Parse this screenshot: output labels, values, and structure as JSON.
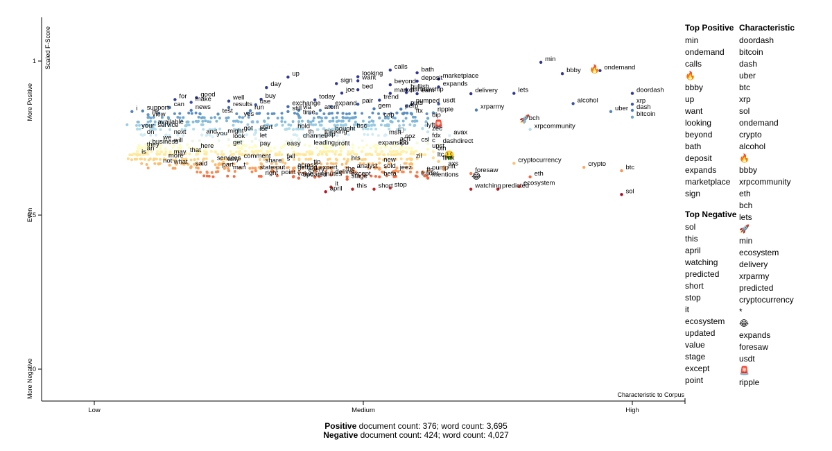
{
  "chart_data": {
    "type": "scatter",
    "xlabel": "Characteristic to Corpus",
    "ylabel": "Scaled F-Score",
    "x_ticks": [
      "Low",
      "Medium",
      "High"
    ],
    "y_ticks": [
      "More Negative",
      "Even",
      "More Positive"
    ],
    "y_tick_values": [
      "0",
      "0.5",
      "1"
    ],
    "xlim": [
      0,
      1
    ],
    "ylim": [
      0,
      1
    ],
    "colors": {
      "positive": "#313695",
      "neutral": "#ffffbf",
      "negative": "#a50026"
    },
    "points": [
      {
        "x": 0.83,
        "y": 0.996,
        "label": "min"
      },
      {
        "x": 0.94,
        "y": 0.969,
        "label": "ondemand"
      },
      {
        "x": 0.87,
        "y": 0.959,
        "label": "bbby"
      },
      {
        "x": 0.93,
        "y": 0.976,
        "label": "🔥"
      },
      {
        "x": 0.55,
        "y": 0.971,
        "label": "calls"
      },
      {
        "x": 0.6,
        "y": 0.962,
        "label": "bath"
      },
      {
        "x": 0.49,
        "y": 0.949,
        "label": "looking"
      },
      {
        "x": 0.36,
        "y": 0.948,
        "label": "up"
      },
      {
        "x": 0.64,
        "y": 0.942,
        "label": "marketplace"
      },
      {
        "x": 0.49,
        "y": 0.936,
        "label": "want"
      },
      {
        "x": 0.6,
        "y": 0.935,
        "label": "deposit"
      },
      {
        "x": 0.45,
        "y": 0.927,
        "label": "sign"
      },
      {
        "x": 0.55,
        "y": 0.923,
        "label": "beyond"
      },
      {
        "x": 0.64,
        "y": 0.916,
        "label": "expands"
      },
      {
        "x": 0.32,
        "y": 0.914,
        "label": "day"
      },
      {
        "x": 0.49,
        "y": 0.907,
        "label": "bed"
      },
      {
        "x": 0.58,
        "y": 0.907,
        "label": "bullish"
      },
      {
        "x": 0.58,
        "y": 0.898,
        "label": "partnership"
      },
      {
        "x": 0.46,
        "y": 0.896,
        "label": "joe"
      },
      {
        "x": 0.55,
        "y": 0.895,
        "label": "market"
      },
      {
        "x": 0.6,
        "y": 0.894,
        "label": "earn"
      },
      {
        "x": 0.7,
        "y": 0.894,
        "label": "delivery"
      },
      {
        "x": 0.78,
        "y": 0.895,
        "label": "lets"
      },
      {
        "x": 1.0,
        "y": 0.895,
        "label": "doordash"
      },
      {
        "x": 0.19,
        "y": 0.881,
        "label": "good"
      },
      {
        "x": 0.15,
        "y": 0.875,
        "label": "for"
      },
      {
        "x": 0.31,
        "y": 0.876,
        "label": "buy"
      },
      {
        "x": 0.41,
        "y": 0.874,
        "label": "today"
      },
      {
        "x": 0.53,
        "y": 0.873,
        "label": "trend"
      },
      {
        "x": 0.25,
        "y": 0.87,
        "label": "well"
      },
      {
        "x": 0.18,
        "y": 0.866,
        "label": "make"
      },
      {
        "x": 0.49,
        "y": 0.86,
        "label": "pair"
      },
      {
        "x": 0.3,
        "y": 0.858,
        "label": "use"
      },
      {
        "x": 0.59,
        "y": 0.86,
        "label": "pumped"
      },
      {
        "x": 0.64,
        "y": 0.861,
        "label": "usdt"
      },
      {
        "x": 0.89,
        "y": 0.862,
        "label": "alcohol"
      },
      {
        "x": 1.0,
        "y": 0.86,
        "label": "xrp"
      },
      {
        "x": 0.58,
        "y": 0.854,
        "label": "puts"
      },
      {
        "x": 0.36,
        "y": 0.852,
        "label": "exchange"
      },
      {
        "x": 0.44,
        "y": 0.852,
        "label": "expand"
      },
      {
        "x": 0.25,
        "y": 0.849,
        "label": "results"
      },
      {
        "x": 0.14,
        "y": 0.849,
        "label": "can"
      },
      {
        "x": 0.52,
        "y": 0.845,
        "label": "gem"
      },
      {
        "x": 0.57,
        "y": 0.844,
        "label": "perp"
      },
      {
        "x": 0.71,
        "y": 0.841,
        "label": "xrparmy"
      },
      {
        "x": 1.0,
        "y": 0.84,
        "label": "dash"
      },
      {
        "x": 0.38,
        "y": 0.84,
        "label": "via"
      },
      {
        "x": 0.29,
        "y": 0.839,
        "label": "run"
      },
      {
        "x": 0.42,
        "y": 0.84,
        "label": "atom"
      },
      {
        "x": 0.18,
        "y": 0.84,
        "label": "news"
      },
      {
        "x": 0.36,
        "y": 0.836,
        "label": "still"
      },
      {
        "x": 0.09,
        "y": 0.838,
        "label": "support"
      },
      {
        "x": 0.07,
        "y": 0.836,
        "label": "i"
      },
      {
        "x": 0.96,
        "y": 0.836,
        "label": "uber"
      },
      {
        "x": 0.63,
        "y": 0.832,
        "label": "ripple"
      },
      {
        "x": 0.59,
        "y": 0.828,
        "label": "ftx"
      },
      {
        "x": 0.23,
        "y": 0.828,
        "label": "test"
      },
      {
        "x": 0.38,
        "y": 0.823,
        "label": "time"
      },
      {
        "x": 0.1,
        "y": 0.826,
        "label": "re"
      },
      {
        "x": 1.0,
        "y": 0.818,
        "label": "bitcoin"
      },
      {
        "x": 0.27,
        "y": 0.818,
        "label": "yes"
      },
      {
        "x": 0.1,
        "y": 0.817,
        "label": "view"
      },
      {
        "x": 0.53,
        "y": 0.815,
        "label": "cap"
      },
      {
        "x": 0.62,
        "y": 0.814,
        "label": "dip"
      },
      {
        "x": 0.8,
        "y": 0.814,
        "label": "🚀"
      },
      {
        "x": 0.8,
        "y": 0.804,
        "label": "bch"
      },
      {
        "x": 0.11,
        "y": 0.792,
        "label": "available"
      },
      {
        "x": 0.11,
        "y": 0.781,
        "label": "service"
      },
      {
        "x": 0.64,
        "y": 0.797,
        "label": "🚨"
      },
      {
        "x": 0.61,
        "y": 0.781,
        "label": "lyft"
      },
      {
        "x": 0.57,
        "y": 0.779,
        "label": "□"
      },
      {
        "x": 0.08,
        "y": 0.779,
        "label": "your"
      },
      {
        "x": 0.37,
        "y": 0.778,
        "label": "hold"
      },
      {
        "x": 0.3,
        "y": 0.775,
        "label": "start"
      },
      {
        "x": 0.48,
        "y": 0.779,
        "label": "bsc"
      },
      {
        "x": 0.81,
        "y": 0.778,
        "label": "xrpcommunity"
      },
      {
        "x": 0.27,
        "y": 0.771,
        "label": "got"
      },
      {
        "x": 0.3,
        "y": 0.768,
        "label": "lot"
      },
      {
        "x": 0.62,
        "y": 0.77,
        "label": "zec"
      },
      {
        "x": 0.44,
        "y": 0.77,
        "label": "bought"
      },
      {
        "x": 0.24,
        "y": 0.762,
        "label": "might"
      },
      {
        "x": 0.39,
        "y": 0.76,
        "label": "th"
      },
      {
        "x": 0.42,
        "y": 0.76,
        "label": "thinking"
      },
      {
        "x": 0.54,
        "y": 0.758,
        "label": "msft"
      },
      {
        "x": 0.66,
        "y": 0.758,
        "label": "avax"
      },
      {
        "x": 0.09,
        "y": 0.759,
        "label": "on"
      },
      {
        "x": 0.14,
        "y": 0.759,
        "label": "next"
      },
      {
        "x": 0.2,
        "y": 0.76,
        "label": "and"
      },
      {
        "x": 0.22,
        "y": 0.754,
        "label": "you"
      },
      {
        "x": 0.42,
        "y": 0.751,
        "label": "gap"
      },
      {
        "x": 0.38,
        "y": 0.747,
        "label": "channel"
      },
      {
        "x": 0.3,
        "y": 0.748,
        "label": "let"
      },
      {
        "x": 0.25,
        "y": 0.745,
        "label": "look"
      },
      {
        "x": 0.62,
        "y": 0.748,
        "label": "fdx"
      },
      {
        "x": 0.57,
        "y": 0.745,
        "label": "coz"
      },
      {
        "x": 0.12,
        "y": 0.741,
        "label": "we"
      },
      {
        "x": 0.56,
        "y": 0.737,
        "label": "ach"
      },
      {
        "x": 0.6,
        "y": 0.734,
        "label": "csl"
      },
      {
        "x": 0.62,
        "y": 0.732,
        "label": "c"
      },
      {
        "x": 0.64,
        "y": 0.73,
        "label": "dashdirect"
      },
      {
        "x": 0.14,
        "y": 0.732,
        "label": "will"
      },
      {
        "x": 0.1,
        "y": 0.727,
        "label": "business"
      },
      {
        "x": 0.25,
        "y": 0.725,
        "label": "get"
      },
      {
        "x": 0.3,
        "y": 0.722,
        "label": "pay"
      },
      {
        "x": 0.35,
        "y": 0.722,
        "label": "easy"
      },
      {
        "x": 0.4,
        "y": 0.724,
        "label": "leading"
      },
      {
        "x": 0.44,
        "y": 0.722,
        "label": "profit"
      },
      {
        "x": 0.52,
        "y": 0.724,
        "label": "expansion"
      },
      {
        "x": 0.56,
        "y": 0.724,
        "label": "ipo"
      },
      {
        "x": 0.09,
        "y": 0.718,
        "label": "they"
      },
      {
        "x": 0.62,
        "y": 0.714,
        "label": "upst"
      },
      {
        "x": 0.19,
        "y": 0.714,
        "label": "here"
      },
      {
        "x": 0.09,
        "y": 0.706,
        "label": "an"
      },
      {
        "x": 0.63,
        "y": 0.706,
        "label": "oin"
      },
      {
        "x": 0.17,
        "y": 0.7,
        "label": "that"
      },
      {
        "x": 0.14,
        "y": 0.695,
        "label": "may"
      },
      {
        "x": 0.08,
        "y": 0.695,
        "label": "is"
      },
      {
        "x": 0.66,
        "y": 0.697,
        "label": "🤑"
      },
      {
        "x": 0.63,
        "y": 0.686,
        "label": "ltc"
      },
      {
        "x": 0.13,
        "y": 0.682,
        "label": "more"
      },
      {
        "x": 0.27,
        "y": 0.681,
        "label": "comment"
      },
      {
        "x": 0.35,
        "y": 0.68,
        "label": "fall"
      },
      {
        "x": 0.59,
        "y": 0.681,
        "label": "zil"
      },
      {
        "x": 0.22,
        "y": 0.675,
        "label": "services"
      },
      {
        "x": 0.24,
        "y": 0.671,
        "label": "why"
      },
      {
        "x": 0.35,
        "y": 0.672,
        "label": "s"
      },
      {
        "x": 0.47,
        "y": 0.674,
        "label": "hrs"
      },
      {
        "x": 0.64,
        "y": 0.674,
        "label": "flink"
      },
      {
        "x": 0.12,
        "y": 0.666,
        "label": "not"
      },
      {
        "x": 0.14,
        "y": 0.662,
        "label": "what"
      },
      {
        "x": 0.31,
        "y": 0.667,
        "label": "share"
      },
      {
        "x": 0.53,
        "y": 0.669,
        "label": "new"
      },
      {
        "x": 0.78,
        "y": 0.668,
        "label": "cryptocurrency"
      },
      {
        "x": 0.4,
        "y": 0.662,
        "label": "tip"
      },
      {
        "x": 0.18,
        "y": 0.657,
        "label": "said"
      },
      {
        "x": 0.23,
        "y": 0.653,
        "label": "part"
      },
      {
        "x": 0.27,
        "y": 0.653,
        "label": "t"
      },
      {
        "x": 0.37,
        "y": 0.652,
        "label": "across"
      },
      {
        "x": 0.65,
        "y": 0.656,
        "label": "axs"
      },
      {
        "x": 0.91,
        "y": 0.655,
        "label": "crypto"
      },
      {
        "x": 0.48,
        "y": 0.649,
        "label": "analyst"
      },
      {
        "x": 0.53,
        "y": 0.649,
        "label": "sold"
      },
      {
        "x": 0.65,
        "y": 0.648,
        "label": "nft"
      },
      {
        "x": 0.25,
        "y": 0.644,
        "label": "man"
      },
      {
        "x": 0.3,
        "y": 0.644,
        "label": "states"
      },
      {
        "x": 0.33,
        "y": 0.644,
        "label": "put"
      },
      {
        "x": 0.37,
        "y": 0.644,
        "label": "getting"
      },
      {
        "x": 0.41,
        "y": 0.644,
        "label": "expert"
      },
      {
        "x": 0.56,
        "y": 0.644,
        "label": "jeez"
      },
      {
        "x": 0.62,
        "y": 0.643,
        "label": "pump"
      },
      {
        "x": 0.98,
        "y": 0.644,
        "label": "btc"
      },
      {
        "x": 0.46,
        "y": 0.64,
        "label": "the"
      },
      {
        "x": 0.61,
        "y": 0.637,
        "label": "ftc"
      },
      {
        "x": 0.7,
        "y": 0.635,
        "label": "foresaw"
      },
      {
        "x": 0.39,
        "y": 0.636,
        "label": "every"
      },
      {
        "x": 0.44,
        "y": 0.63,
        "label": "deliver"
      },
      {
        "x": 0.34,
        "y": 0.628,
        "label": "point"
      },
      {
        "x": 0.6,
        "y": 0.625,
        "label": "trader"
      },
      {
        "x": 0.71,
        "y": 0.628,
        "label": "😂"
      },
      {
        "x": 0.31,
        "y": 0.626,
        "label": "right"
      },
      {
        "x": 0.37,
        "y": 0.624,
        "label": "value"
      },
      {
        "x": 0.41,
        "y": 0.623,
        "label": "minutes"
      },
      {
        "x": 0.47,
        "y": 0.624,
        "label": "except"
      },
      {
        "x": 0.53,
        "y": 0.624,
        "label": "beta"
      },
      {
        "x": 0.81,
        "y": 0.624,
        "label": "eth"
      },
      {
        "x": 0.62,
        "y": 0.62,
        "label": "mentions"
      },
      {
        "x": 0.38,
        "y": 0.62,
        "label": "updated"
      },
      {
        "x": 0.47,
        "y": 0.616,
        "label": "stage"
      },
      {
        "x": 0.79,
        "y": 0.593,
        "label": "ecosystem"
      },
      {
        "x": 0.44,
        "y": 0.591,
        "label": "it"
      },
      {
        "x": 0.75,
        "y": 0.584,
        "label": "predicted"
      },
      {
        "x": 0.55,
        "y": 0.588,
        "label": "stop"
      },
      {
        "x": 0.7,
        "y": 0.584,
        "label": "watching"
      },
      {
        "x": 0.52,
        "y": 0.584,
        "label": "short"
      },
      {
        "x": 0.48,
        "y": 0.584,
        "label": "this"
      },
      {
        "x": 0.43,
        "y": 0.576,
        "label": "april"
      },
      {
        "x": 0.98,
        "y": 0.567,
        "label": "sol"
      }
    ]
  },
  "sidebar": {
    "top_positive_title": "Top Positive",
    "top_positive": [
      "min",
      "ondemand",
      "calls",
      "🔥",
      "bbby",
      "up",
      "want",
      "looking",
      "beyond",
      "bath",
      "deposit",
      "expands",
      "marketplace",
      "sign"
    ],
    "top_negative_title": "Top Negative",
    "top_negative": [
      "sol",
      "this",
      "april",
      "watching",
      "predicted",
      "short",
      "stop",
      "it",
      "ecosystem",
      "updated",
      "value",
      "stage",
      "except",
      "point"
    ],
    "characteristic_title": "Characteristic",
    "characteristic": [
      "doordash",
      "bitcoin",
      "dash",
      "uber",
      "btc",
      "xrp",
      "sol",
      "ondemand",
      "crypto",
      "alcohol",
      "🔥",
      "bbby",
      "xrpcommunity",
      "eth",
      "bch",
      "lets",
      "🚀",
      "min",
      "ecosystem",
      "delivery",
      "xrparmy",
      "predicted",
      "cryptocurrency",
      "*",
      "😂",
      "expands",
      "foresaw",
      "usdt",
      "🚨",
      "ripple"
    ]
  },
  "footer": {
    "positive_label": "Positive",
    "positive_stats": " document count: 376; word count: 3,695",
    "negative_label": "Negative",
    "negative_stats": " document count: 424; word count: 4,027"
  }
}
